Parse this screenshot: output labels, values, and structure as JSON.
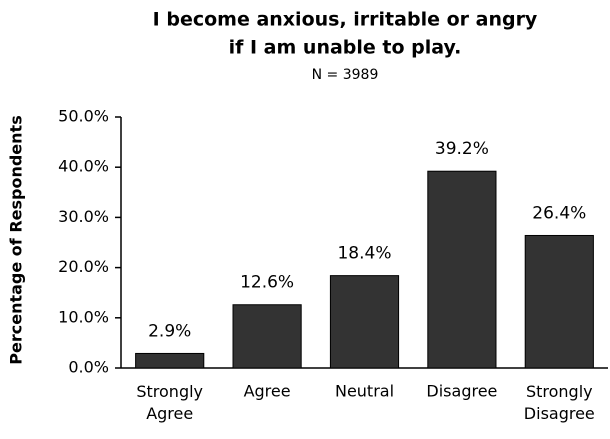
{
  "chart_data": {
    "type": "bar",
    "title": [
      "I become anxious, irritable or angry",
      "if I am unable to play."
    ],
    "subtitle": "N = 3989",
    "y_label": "Percentage of Respondents",
    "categories": [
      "Strongly Agree",
      "Agree",
      "Neutral",
      "Disagree",
      "Strongly Disagree"
    ],
    "values": [
      2.9,
      12.6,
      18.4,
      39.2,
      26.4
    ],
    "value_labels": [
      "2.9%",
      "12.6%",
      "18.4%",
      "39.2%",
      "26.4%"
    ],
    "color": "#333333",
    "ylim": [
      0,
      50
    ],
    "yticks": [
      {
        "value": 0,
        "label": "0.0%"
      },
      {
        "value": 10,
        "label": "10.0%"
      },
      {
        "value": 20,
        "label": "20.0%"
      },
      {
        "value": 30,
        "label": "30.0%"
      },
      {
        "value": 40,
        "label": "40.0%"
      },
      {
        "value": 50,
        "label": "50.0%"
      }
    ],
    "grid": false
  }
}
